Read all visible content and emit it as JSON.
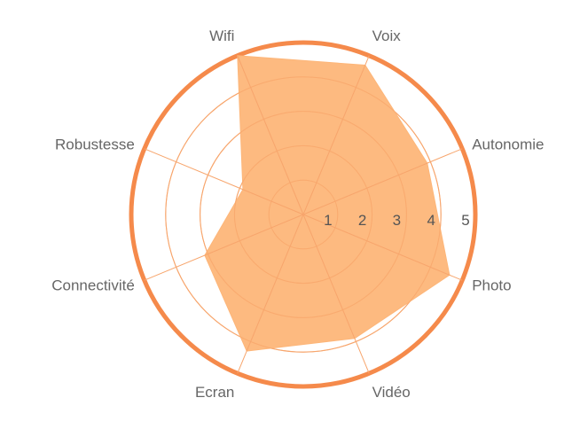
{
  "chart_data": {
    "type": "radar",
    "title": "",
    "axes": [
      "Voix",
      "Autonomie",
      "Photo",
      "Vidéo",
      "Ecran",
      "Connectivité",
      "Robustesse",
      "Wifi"
    ],
    "series": [
      {
        "values": [
          4.7,
          3.9,
          4.6,
          3.9,
          4.3,
          3.1,
          1.9,
          5.0
        ]
      }
    ],
    "ticks": [
      "1",
      "2",
      "3",
      "4",
      "5"
    ],
    "rlim": [
      0,
      5
    ],
    "grid": true,
    "legend": "none",
    "colors": {
      "fill": "#fdb679",
      "grid": "#f7a56c",
      "outer_ring": "#f58a4b",
      "label": "#666666",
      "tick": "#555555"
    }
  }
}
